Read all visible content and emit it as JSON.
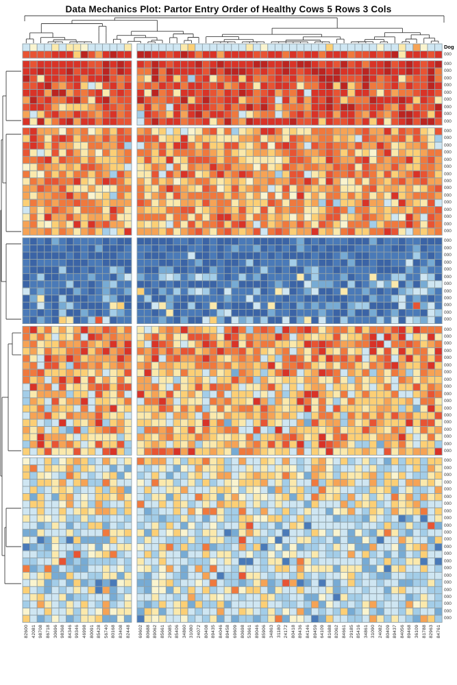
{
  "title": "Data Mechanics Plot: Partor Entry Order of Healthy Cows 5 Rows 3 Cols",
  "row_axis": {
    "header_label": "Dog",
    "stub_label": "000"
  },
  "chart_data": {
    "type": "heatmap",
    "title": "Data Mechanics Plot: Partor Entry Order of Healthy Cows 5 Rows 3 Cols",
    "layout_hint": "clustered heatmap with top column dendrogram and left row dendrogram, 2 visible column groups, 6 row bands separated by white gaps, no colorbar",
    "palette": [
      "#bb2420",
      "#d93327",
      "#e85433",
      "#f0793d",
      "#f6a355",
      "#fccf75",
      "#fbe9ac",
      "#faf4cf",
      "#cfe6f2",
      "#a3cde8",
      "#77abd4",
      "#4a7ab8",
      "#3b64a6"
    ],
    "cell_border_color": "#8fa0a8",
    "dendrogram_color": "#3d3d3d",
    "col_groups": [
      15,
      42
    ],
    "row_blocks": [
      {
        "name": "header-band",
        "phases": [
          {
            "rows": 1,
            "weights": {
              "8": 70,
              "7": 10,
              "6": 8,
              "5": 6,
              "4": 3,
              "9": 3
            }
          },
          {
            "rows": 1,
            "weights": {
              "1": 55,
              "0": 15,
              "2": 15,
              "3": 6,
              "4": 4,
              "5": 2,
              "8": 2,
              "6": 1
            }
          }
        ]
      },
      {
        "name": "block-1-red",
        "phases": [
          {
            "rows": 2,
            "weights": {
              "0": 30,
              "1": 45,
              "2": 20,
              "3": 5
            }
          },
          {
            "rows": 7,
            "weights": {
              "0": 12,
              "1": 30,
              "2": 22,
              "3": 18,
              "4": 8,
              "5": 5,
              "6": 3,
              "8": 1.5,
              "9": 0.5
            }
          }
        ]
      },
      {
        "name": "block-2-orange",
        "phases": [
          {
            "rows": 15,
            "weights": {
              "1": 6,
              "2": 14,
              "3": 26,
              "4": 22,
              "5": 16,
              "6": 10,
              "7": 2,
              "8": 3,
              "9": 1
            }
          }
        ]
      },
      {
        "name": "block-3-blue",
        "phases": [
          {
            "rows": 5,
            "weights": {
              "12": 50,
              "11": 38,
              "10": 8,
              "9": 3,
              "1": 0.5,
              "8": 0.5
            }
          },
          {
            "rows": 7,
            "weights": {
              "12": 30,
              "11": 35,
              "10": 15,
              "9": 10,
              "8": 6,
              "6": 2,
              "5": 1.5,
              "2": 0.5
            }
          }
        ]
      },
      {
        "name": "block-4-warm",
        "phases": [
          {
            "rows": 6,
            "weights": {
              "1": 8,
              "2": 15,
              "3": 22,
              "4": 20,
              "5": 18,
              "6": 10,
              "8": 5,
              "9": 2
            }
          },
          {
            "rows": 12,
            "weights": {
              "1": 4,
              "2": 8,
              "3": 14,
              "4": 18,
              "5": 24,
              "6": 16,
              "8": 10,
              "9": 4,
              "10": 2
            }
          }
        ]
      },
      {
        "name": "block-5-pastel",
        "phases": [
          {
            "rows": 8,
            "weights": {
              "3": 4,
              "4": 10,
              "5": 20,
              "6": 18,
              "7": 5,
              "8": 25,
              "9": 15,
              "10": 3
            }
          },
          {
            "rows": 15,
            "weights": {
              "2": 1,
              "3": 2,
              "4": 4,
              "5": 8,
              "6": 12,
              "7": 6,
              "8": 30,
              "9": 22,
              "10": 12,
              "11": 3
            }
          }
        ]
      }
    ],
    "col_labels": [
      "82600",
      "42081",
      "98708",
      "86718",
      "30696",
      "98368",
      "84346",
      "99346",
      "46998",
      "80091",
      "85428",
      "56740",
      "80168",
      "83408",
      "82448",
      "69602",
      "80688",
      "89062",
      "85661",
      "29085",
      "85406",
      "34860",
      "31080",
      "24072",
      "80408",
      "89435",
      "84046",
      "89458",
      "69609",
      "80698",
      "53661",
      "89046",
      "85906",
      "34863",
      "31180",
      "24172",
      "80418",
      "89436",
      "84146",
      "89459",
      "64109",
      "81688",
      "82062",
      "84661",
      "29185",
      "85416",
      "34861",
      "31090",
      "24082",
      "80409",
      "89437",
      "84056",
      "89468",
      "36109",
      "81788",
      "82963",
      "84761"
    ]
  }
}
